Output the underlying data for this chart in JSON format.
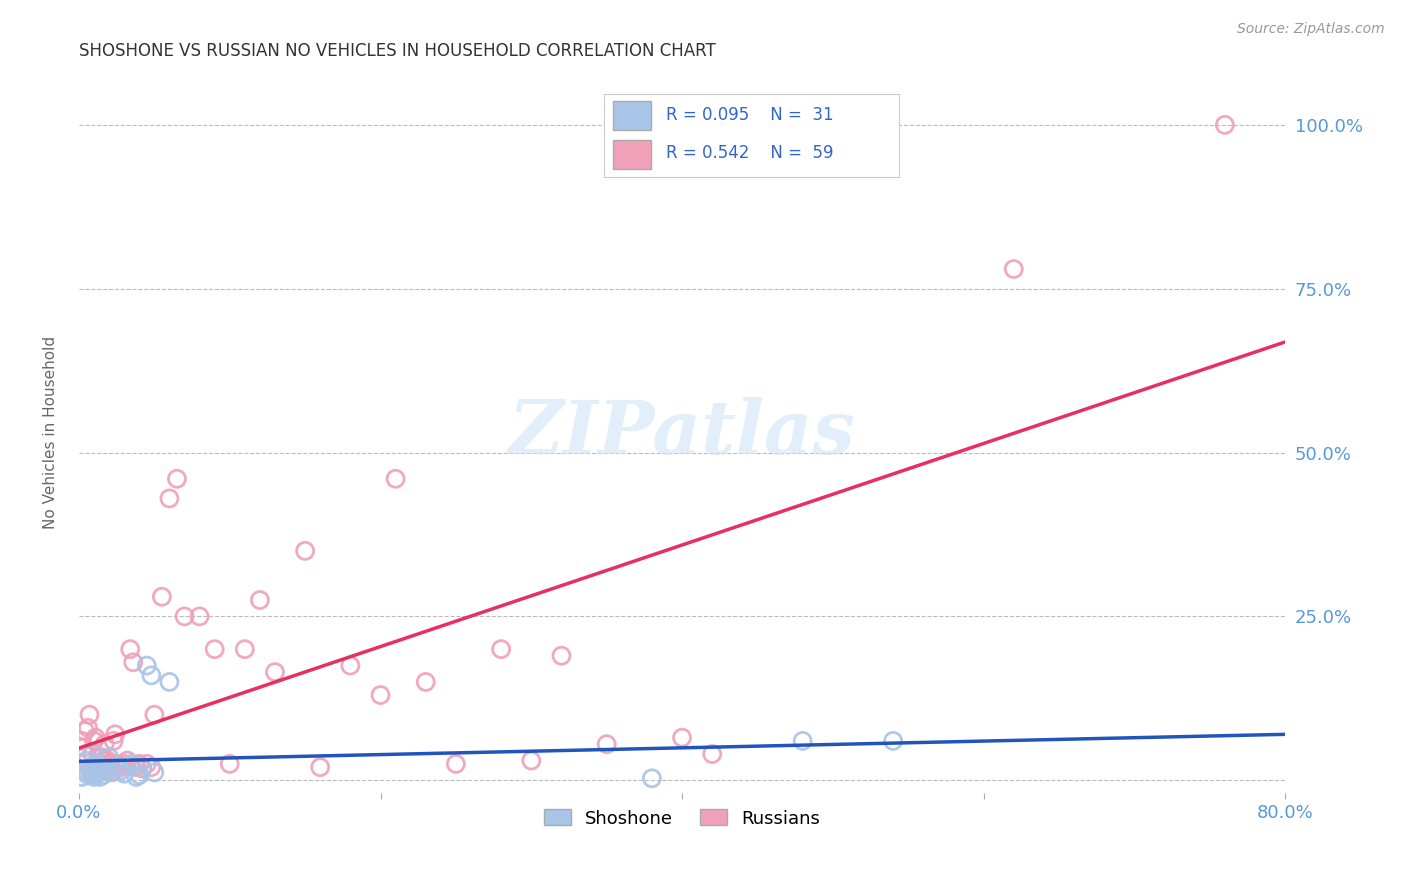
{
  "title": "SHOSHONE VS RUSSIAN NO VEHICLES IN HOUSEHOLD CORRELATION CHART",
  "source": "Source: ZipAtlas.com",
  "ylabel": "No Vehicles in Household",
  "xlabel": "",
  "xlim": [
    0.0,
    0.8
  ],
  "ylim": [
    -0.02,
    1.08
  ],
  "xticks": [
    0.0,
    0.2,
    0.4,
    0.6,
    0.8
  ],
  "xticklabels": [
    "0.0%",
    "",
    "",
    "",
    "80.0%"
  ],
  "yticks": [
    0.0,
    0.25,
    0.5,
    0.75,
    1.0
  ],
  "yticklabels_right": [
    "",
    "25.0%",
    "50.0%",
    "75.0%",
    "100.0%"
  ],
  "shoshone_color": "#a8c4e8",
  "russian_color": "#f0a0b8",
  "shoshone_line_color": "#2255bb",
  "russian_line_color": "#e83060",
  "background_color": "#ffffff",
  "grid_color": "#bbbbbb",
  "watermark": "ZIPatlas",
  "shoshone_x": [
    0.002,
    0.004,
    0.005,
    0.006,
    0.007,
    0.008,
    0.009,
    0.01,
    0.011,
    0.012,
    0.013,
    0.014,
    0.015,
    0.016,
    0.018,
    0.02,
    0.022,
    0.025,
    0.028,
    0.03,
    0.035,
    0.038,
    0.04,
    0.042,
    0.045,
    0.048,
    0.05,
    0.06,
    0.48,
    0.54,
    0.38
  ],
  "shoshone_y": [
    0.005,
    0.015,
    0.03,
    0.008,
    0.02,
    0.01,
    0.04,
    0.005,
    0.025,
    0.01,
    0.015,
    0.005,
    0.02,
    0.008,
    0.015,
    0.035,
    0.012,
    0.02,
    0.015,
    0.01,
    0.025,
    0.005,
    0.008,
    0.018,
    0.175,
    0.16,
    0.012,
    0.15,
    0.06,
    0.06,
    0.003
  ],
  "russian_x": [
    0.002,
    0.003,
    0.004,
    0.005,
    0.006,
    0.007,
    0.008,
    0.009,
    0.01,
    0.011,
    0.012,
    0.013,
    0.014,
    0.015,
    0.016,
    0.017,
    0.018,
    0.019,
    0.02,
    0.022,
    0.023,
    0.024,
    0.025,
    0.028,
    0.03,
    0.032,
    0.034,
    0.036,
    0.038,
    0.04,
    0.042,
    0.045,
    0.048,
    0.05,
    0.055,
    0.06,
    0.065,
    0.07,
    0.08,
    0.09,
    0.1,
    0.11,
    0.12,
    0.13,
    0.15,
    0.16,
    0.18,
    0.2,
    0.21,
    0.23,
    0.25,
    0.28,
    0.3,
    0.32,
    0.35,
    0.4,
    0.42,
    0.76,
    0.62
  ],
  "russian_y": [
    0.06,
    0.05,
    0.075,
    0.04,
    0.08,
    0.1,
    0.015,
    0.02,
    0.06,
    0.065,
    0.02,
    0.035,
    0.025,
    0.035,
    0.03,
    0.055,
    0.02,
    0.03,
    0.025,
    0.015,
    0.06,
    0.07,
    0.025,
    0.02,
    0.025,
    0.03,
    0.2,
    0.18,
    0.02,
    0.025,
    0.018,
    0.025,
    0.02,
    0.1,
    0.28,
    0.43,
    0.46,
    0.25,
    0.25,
    0.2,
    0.025,
    0.2,
    0.275,
    0.165,
    0.35,
    0.02,
    0.175,
    0.13,
    0.46,
    0.15,
    0.025,
    0.2,
    0.03,
    0.19,
    0.055,
    0.065,
    0.04,
    1.0,
    0.78
  ]
}
